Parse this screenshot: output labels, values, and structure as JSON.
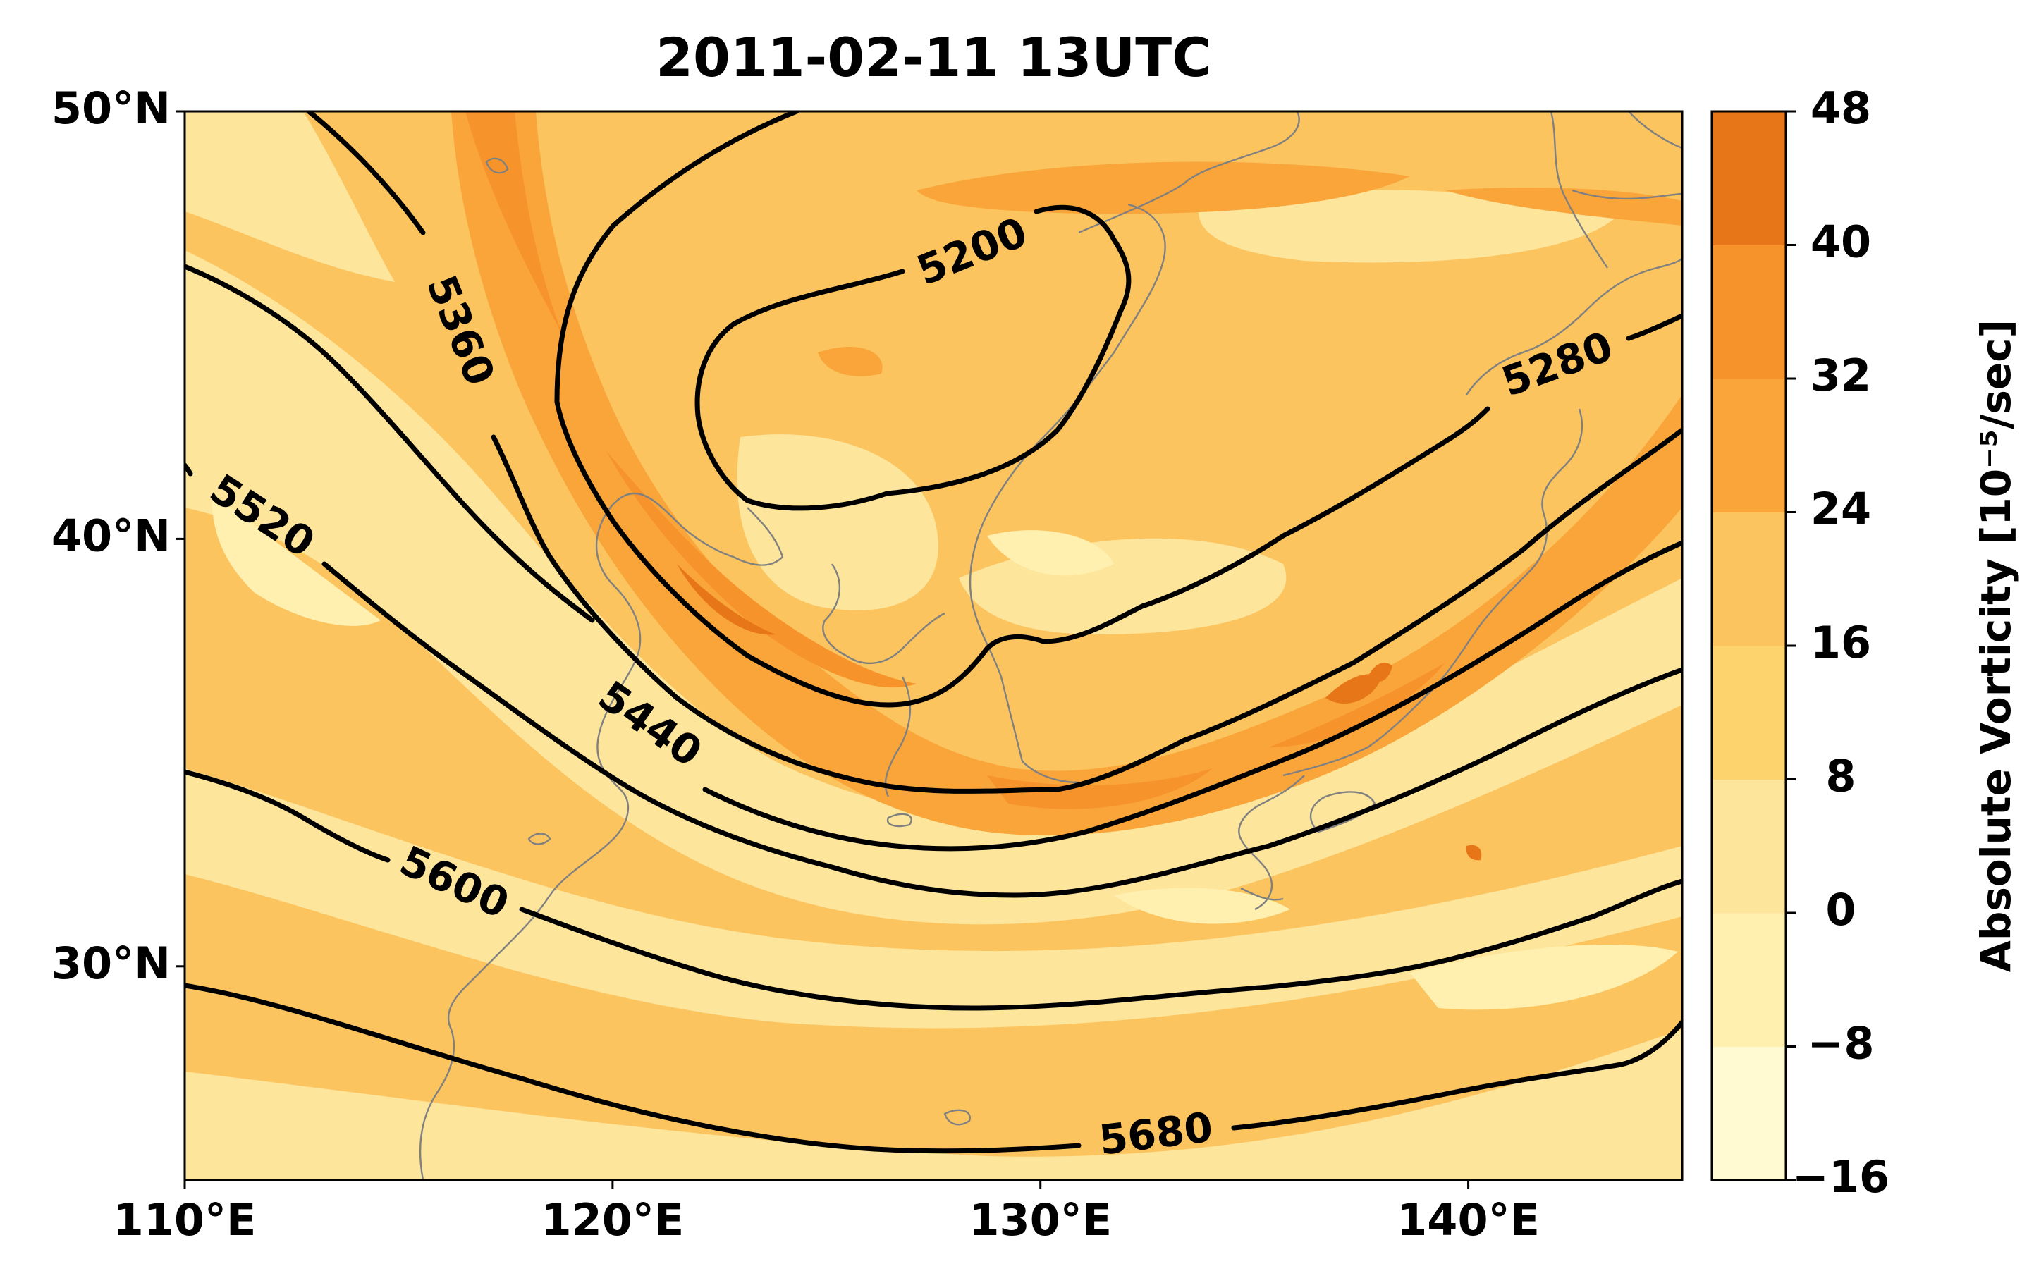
{
  "title": "2011-02-11 13UTC",
  "map": {
    "lon_range": [
      110,
      145
    ],
    "lat_range": [
      25,
      50
    ],
    "x_ticks": [
      {
        "value": 110,
        "label": "110°E"
      },
      {
        "value": 120,
        "label": "120°E"
      },
      {
        "value": 130,
        "label": "130°E"
      },
      {
        "value": 140,
        "label": "140°E"
      }
    ],
    "y_ticks": [
      {
        "value": 50,
        "label": "50°N"
      },
      {
        "value": 40,
        "label": "40°N"
      },
      {
        "value": 30,
        "label": "30°N"
      }
    ],
    "fill_field": "Absolute Vorticity",
    "contour_field": "geopotential height",
    "contour_labels": [
      "5200",
      "5280",
      "5360",
      "5440",
      "5520",
      "5600",
      "5680"
    ],
    "coastline_color": "#808080"
  },
  "colorbar": {
    "label": "Absolute Vorticity [10⁻⁵/sec]",
    "ticks": [
      "−16",
      "−8",
      "0",
      "8",
      "16",
      "24",
      "32",
      "40",
      "48"
    ],
    "levels": [
      -16,
      -8,
      0,
      8,
      16,
      24,
      32,
      40,
      48
    ],
    "colors": [
      "#fffad1",
      "#fff0b0",
      "#fde59c",
      "#fdd36e",
      "#fbc45f",
      "#f9a53a",
      "#f7932b",
      "#e67618",
      "#d45a08"
    ]
  }
}
